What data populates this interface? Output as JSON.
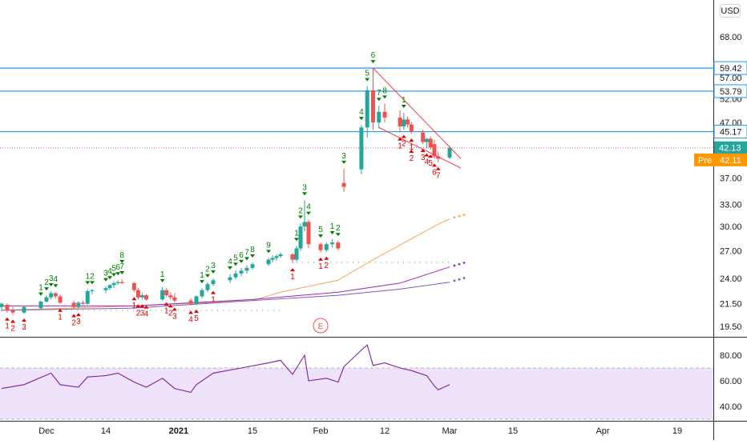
{
  "currency": "USD",
  "earnings_marker": "E",
  "chart_data": {
    "type": "candlestick",
    "x_tick_labels": [
      "Dec",
      "14",
      "2021",
      "15",
      "Feb",
      "12",
      "Mar",
      "15",
      "Apr",
      "19"
    ],
    "price_axis": {
      "scale": "log",
      "ticks": [
        68.0,
        57.0,
        52.0,
        47.0,
        42.0,
        37.0,
        33.0,
        30.0,
        27.0,
        24.0,
        21.5,
        19.5
      ],
      "tick_labels": [
        "68.00",
        "57.00",
        "52.00",
        "47.00",
        "42.00",
        "37.00",
        "33.00",
        "30.00",
        "27.00",
        "24.00",
        "21.50",
        "19.50"
      ]
    },
    "horizontal_levels": [
      59.42,
      53.79,
      45.17
    ],
    "level_labels": [
      "59.42",
      "53.79",
      "45.17"
    ],
    "last_price": 42.13,
    "last_price_label": "42.13",
    "premarket_tag": "Pre",
    "premarket_price": 42.11,
    "premarket_label": "42.11",
    "ohlc": [
      {
        "date": "Nov 23",
        "o": 21.2,
        "h": 21.6,
        "l": 20.8,
        "c": 21.5
      },
      {
        "date": "Nov 24",
        "o": 21.4,
        "h": 21.5,
        "l": 20.7,
        "c": 20.9
      },
      {
        "date": "Nov 25",
        "o": 20.9,
        "h": 21.2,
        "l": 20.5,
        "c": 20.7
      },
      {
        "date": "Nov 27",
        "o": 20.7,
        "h": 21.3,
        "l": 20.6,
        "c": 21.2
      },
      {
        "date": "Nov 30",
        "o": 21.1,
        "h": 21.8,
        "l": 21.0,
        "c": 21.7
      },
      {
        "date": "Dec 1",
        "o": 21.7,
        "h": 22.3,
        "l": 21.6,
        "c": 22.1
      },
      {
        "date": "Dec 2",
        "o": 22.1,
        "h": 22.7,
        "l": 21.9,
        "c": 22.5
      },
      {
        "date": "Dec 3",
        "o": 22.5,
        "h": 22.6,
        "l": 22.0,
        "c": 22.2
      },
      {
        "date": "Dec 4",
        "o": 22.2,
        "h": 22.4,
        "l": 21.5,
        "c": 21.6
      },
      {
        "date": "Dec 7",
        "o": 21.6,
        "h": 21.8,
        "l": 21.0,
        "c": 21.2
      },
      {
        "date": "Dec 8",
        "o": 21.2,
        "h": 21.7,
        "l": 21.1,
        "c": 21.6
      },
      {
        "date": "Dec 9",
        "o": 21.6,
        "h": 21.8,
        "l": 21.4,
        "c": 21.5
      },
      {
        "date": "Dec 10",
        "o": 21.5,
        "h": 22.9,
        "l": 21.4,
        "c": 22.7
      },
      {
        "date": "Dec 11",
        "o": 22.7,
        "h": 22.9,
        "l": 22.4,
        "c": 22.8
      },
      {
        "date": "Dec 14",
        "o": 22.8,
        "h": 23.2,
        "l": 22.5,
        "c": 23.0
      },
      {
        "date": "Dec 15",
        "o": 23.0,
        "h": 23.4,
        "l": 22.8,
        "c": 23.3
      },
      {
        "date": "Dec 16",
        "o": 23.3,
        "h": 23.7,
        "l": 23.0,
        "c": 23.5
      },
      {
        "date": "Dec 17",
        "o": 23.5,
        "h": 23.8,
        "l": 23.3,
        "c": 23.6
      },
      {
        "date": "Dec 18",
        "o": 23.6,
        "h": 23.9,
        "l": 23.4,
        "c": 23.5
      },
      {
        "date": "Dec 21",
        "o": 23.5,
        "h": 23.6,
        "l": 22.6,
        "c": 22.8
      },
      {
        "date": "Dec 22",
        "o": 22.8,
        "h": 23.0,
        "l": 21.9,
        "c": 22.1
      },
      {
        "date": "Dec 23",
        "o": 22.1,
        "h": 22.5,
        "l": 21.9,
        "c": 22.3
      },
      {
        "date": "Dec 24",
        "o": 22.3,
        "h": 22.4,
        "l": 21.8,
        "c": 21.9
      },
      {
        "date": "Dec 28",
        "o": 21.9,
        "h": 23.1,
        "l": 21.8,
        "c": 22.8
      },
      {
        "date": "Dec 29",
        "o": 22.8,
        "h": 23.0,
        "l": 22.1,
        "c": 22.3
      },
      {
        "date": "Dec 30",
        "o": 22.3,
        "h": 22.6,
        "l": 21.9,
        "c": 22.1
      },
      {
        "date": "Dec 31",
        "o": 22.1,
        "h": 22.5,
        "l": 21.6,
        "c": 21.8
      },
      {
        "date": "Jan 4",
        "o": 21.8,
        "h": 22.0,
        "l": 21.3,
        "c": 21.5
      },
      {
        "date": "Jan 5",
        "o": 21.5,
        "h": 22.3,
        "l": 21.4,
        "c": 22.2
      },
      {
        "date": "Jan 6",
        "o": 22.2,
        "h": 23.0,
        "l": 22.0,
        "c": 22.8
      },
      {
        "date": "Jan 7",
        "o": 22.8,
        "h": 23.6,
        "l": 22.6,
        "c": 23.4
      },
      {
        "date": "Jan 8",
        "o": 23.4,
        "h": 24.0,
        "l": 23.2,
        "c": 23.8
      },
      {
        "date": "Jan 11",
        "o": 23.8,
        "h": 24.4,
        "l": 23.5,
        "c": 24.1
      },
      {
        "date": "Jan 12",
        "o": 24.1,
        "h": 24.8,
        "l": 23.9,
        "c": 24.5
      },
      {
        "date": "Jan 13",
        "o": 24.5,
        "h": 25.1,
        "l": 24.2,
        "c": 24.8
      },
      {
        "date": "Jan 14",
        "o": 24.8,
        "h": 25.4,
        "l": 24.5,
        "c": 25.1
      },
      {
        "date": "Jan 15",
        "o": 25.1,
        "h": 25.7,
        "l": 24.9,
        "c": 25.5
      },
      {
        "date": "Jan 19",
        "o": 25.5,
        "h": 26.2,
        "l": 25.3,
        "c": 26.0
      },
      {
        "date": "Jan 20",
        "o": 26.0,
        "h": 26.5,
        "l": 25.7,
        "c": 26.2
      },
      {
        "date": "Jan 21",
        "o": 26.2,
        "h": 26.6,
        "l": 25.9,
        "c": 26.4
      },
      {
        "date": "Jan 22",
        "o": 26.4,
        "h": 26.8,
        "l": 26.2,
        "c": 26.6
      },
      {
        "date": "Jan 25",
        "o": 26.6,
        "h": 26.8,
        "l": 25.6,
        "c": 26.0
      },
      {
        "date": "Jan 26",
        "o": 26.0,
        "h": 27.6,
        "l": 25.8,
        "c": 27.3
      },
      {
        "date": "Jan 27",
        "o": 27.3,
        "h": 30.4,
        "l": 27.0,
        "c": 30.0
      },
      {
        "date": "Jan 28",
        "o": 30.0,
        "h": 33.6,
        "l": 29.4,
        "c": 30.6
      },
      {
        "date": "Jan 29",
        "o": 30.6,
        "h": 30.9,
        "l": 27.3,
        "c": 27.8
      },
      {
        "date": "Feb 1",
        "o": 27.8,
        "h": 28.0,
        "l": 26.8,
        "c": 27.1
      },
      {
        "date": "Feb 2",
        "o": 27.1,
        "h": 28.0,
        "l": 26.9,
        "c": 27.8
      },
      {
        "date": "Feb 3",
        "o": 27.8,
        "h": 28.4,
        "l": 27.4,
        "c": 28.0
      },
      {
        "date": "Feb 4",
        "o": 28.0,
        "h": 28.2,
        "l": 27.1,
        "c": 27.3
      },
      {
        "date": "Feb 5",
        "o": 36.2,
        "h": 38.5,
        "l": 34.8,
        "c": 35.6
      },
      {
        "date": "Feb 8",
        "o": 38.4,
        "h": 46.5,
        "l": 37.6,
        "c": 46.0
      },
      {
        "date": "Feb 9",
        "o": 46.0,
        "h": 55.0,
        "l": 44.0,
        "c": 54.0
      },
      {
        "date": "Feb 10",
        "o": 54.0,
        "h": 59.42,
        "l": 45.5,
        "c": 47.0
      },
      {
        "date": "Feb 11",
        "o": 47.0,
        "h": 50.5,
        "l": 45.8,
        "c": 49.2
      },
      {
        "date": "Feb 12",
        "o": 49.2,
        "h": 51.0,
        "l": 47.0,
        "c": 48.0
      },
      {
        "date": "Feb 16",
        "o": 48.0,
        "h": 49.5,
        "l": 45.0,
        "c": 46.2
      },
      {
        "date": "Feb 17",
        "o": 46.2,
        "h": 49.0,
        "l": 45.5,
        "c": 47.6
      },
      {
        "date": "Feb 18",
        "o": 47.6,
        "h": 48.2,
        "l": 46.0,
        "c": 46.6
      },
      {
        "date": "Feb 19",
        "o": 46.6,
        "h": 47.0,
        "l": 44.8,
        "c": 45.2
      },
      {
        "date": "Feb 22",
        "o": 45.0,
        "h": 45.6,
        "l": 42.8,
        "c": 43.2
      },
      {
        "date": "Feb 23",
        "o": 43.2,
        "h": 44.0,
        "l": 42.0,
        "c": 43.8
      },
      {
        "date": "Feb 24",
        "o": 43.8,
        "h": 44.2,
        "l": 41.8,
        "c": 42.2
      },
      {
        "date": "Feb 25",
        "o": 42.8,
        "h": 43.6,
        "l": 40.2,
        "c": 40.6
      },
      {
        "date": "Feb 26",
        "o": 40.6,
        "h": 41.4,
        "l": 39.6,
        "c": 40.2
      },
      {
        "date": "Mar 1",
        "o": 40.4,
        "h": 42.5,
        "l": 40.1,
        "c": 42.13
      }
    ],
    "overlays": [
      {
        "kind": "moving-average",
        "color": "#f7a35c",
        "values": [
          {
            "date": "Nov 23",
            "v": 20.9
          },
          {
            "date": "Dec 21",
            "v": 21.3
          },
          {
            "date": "Jan 15",
            "v": 21.8
          },
          {
            "date": "Jan 22",
            "v": 22.6
          },
          {
            "date": "Feb 4",
            "v": 23.8
          },
          {
            "date": "Feb 10",
            "v": 26.0
          },
          {
            "date": "Feb 18",
            "v": 28.2
          },
          {
            "date": "Feb 26",
            "v": 30.3
          },
          {
            "date": "Mar 1",
            "v": 31.0
          }
        ]
      },
      {
        "kind": "moving-average",
        "color": "#9c27b0",
        "values": [
          {
            "date": "Nov 23",
            "v": 21.3
          },
          {
            "date": "Dec 21",
            "v": 21.3
          },
          {
            "date": "Jan 15",
            "v": 21.9
          },
          {
            "date": "Feb 4",
            "v": 22.6
          },
          {
            "date": "Feb 16",
            "v": 23.5
          },
          {
            "date": "Mar 1",
            "v": 25.2
          }
        ]
      },
      {
        "kind": "moving-average",
        "color": "#7e57c2",
        "values": [
          {
            "date": "Nov 23",
            "v": 20.9
          },
          {
            "date": "Dec 21",
            "v": 21.1
          },
          {
            "date": "Jan 15",
            "v": 21.8
          },
          {
            "date": "Feb 4",
            "v": 22.3
          },
          {
            "date": "Feb 16",
            "v": 22.9
          },
          {
            "date": "Mar 1",
            "v": 23.6
          }
        ]
      }
    ],
    "dotted_levels": [
      {
        "value": 20.9,
        "color": "#66bb6a",
        "from": "Dec 4",
        "to": "Jan 22"
      },
      {
        "value": 25.7,
        "color": "#66bb6a",
        "from": "Jan 26",
        "to": "Mar 1"
      }
    ],
    "trendlines": [
      {
        "from": {
          "date": "Feb 10",
          "v": 59.42
        },
        "to": {
          "date": "Mar 1",
          "v": 40.2
        },
        "color": "#f23645"
      },
      {
        "from": {
          "date": "Feb 11",
          "v": 46.0
        },
        "to": {
          "date": "Mar 1",
          "v": 38.6
        },
        "color": "#f23645"
      }
    ],
    "td_sequential": {
      "buy_setup": [
        {
          "date": "Nov 24",
          "n": "1"
        },
        {
          "date": "Nov 25",
          "n": "2"
        },
        {
          "date": "Nov 27",
          "n": "3"
        },
        {
          "date": "Dec 4",
          "n": "1"
        },
        {
          "date": "Dec 7",
          "n": "2"
        },
        {
          "date": "Dec 8",
          "n": "3"
        },
        {
          "date": "Dec 21",
          "n": "1"
        },
        {
          "date": "Dec 22",
          "n": "2"
        },
        {
          "date": "Dec 23",
          "n": "3"
        },
        {
          "date": "Dec 24",
          "n": "4"
        },
        {
          "date": "Dec 29",
          "n": "1"
        },
        {
          "date": "Dec 30",
          "n": "2"
        },
        {
          "date": "Dec 31",
          "n": "3"
        },
        {
          "date": "Jan 4",
          "n": "4"
        },
        {
          "date": "Jan 5",
          "n": "5"
        },
        {
          "date": "Jan 8",
          "n": "1"
        },
        {
          "date": "Jan 25",
          "n": "1"
        },
        {
          "date": "Feb 1",
          "n": "1"
        },
        {
          "date": "Feb 2",
          "n": "2"
        },
        {
          "date": "Feb 16",
          "n": "1"
        },
        {
          "date": "Feb 17",
          "n": "2"
        },
        {
          "date": "Feb 19",
          "n": "1"
        },
        {
          "date": "Feb 19",
          "n": "2"
        },
        {
          "date": "Feb 22",
          "n": "3"
        },
        {
          "date": "Feb 23",
          "n": "4"
        },
        {
          "date": "Feb 24",
          "n": "5"
        },
        {
          "date": "Feb 25",
          "n": "6"
        },
        {
          "date": "Feb 26",
          "n": "7"
        }
      ],
      "sell_setup": [
        {
          "date": "Nov 30",
          "n": "1"
        },
        {
          "date": "Dec 1",
          "n": "2"
        },
        {
          "date": "Dec 2",
          "n": "3"
        },
        {
          "date": "Dec 3",
          "n": "4"
        },
        {
          "date": "Dec 10",
          "n": "1"
        },
        {
          "date": "Dec 11",
          "n": "2"
        },
        {
          "date": "Dec 14",
          "n": "3"
        },
        {
          "date": "Dec 15",
          "n": "4"
        },
        {
          "date": "Dec 16",
          "n": "5"
        },
        {
          "date": "Dec 17",
          "n": "6"
        },
        {
          "date": "Dec 18",
          "n": "7"
        },
        {
          "date": "Dec 18",
          "n": "8"
        },
        {
          "date": "Dec 28",
          "n": "1"
        },
        {
          "date": "Jan 6",
          "n": "1"
        },
        {
          "date": "Jan 7",
          "n": "2"
        },
        {
          "date": "Jan 8",
          "n": "3"
        },
        {
          "date": "Jan 11",
          "n": "4"
        },
        {
          "date": "Jan 12",
          "n": "5"
        },
        {
          "date": "Jan 13",
          "n": "6"
        },
        {
          "date": "Jan 14",
          "n": "7"
        },
        {
          "date": "Jan 15",
          "n": "8"
        },
        {
          "date": "Jan 19",
          "n": "9"
        },
        {
          "date": "Jan 26",
          "n": "1"
        },
        {
          "date": "Jan 27",
          "n": "2"
        },
        {
          "date": "Jan 28",
          "n": "3"
        },
        {
          "date": "Jan 29",
          "n": "4"
        },
        {
          "date": "Feb 1",
          "n": "5"
        },
        {
          "date": "Feb 3",
          "n": "1"
        },
        {
          "date": "Feb 4",
          "n": "2"
        },
        {
          "date": "Feb 5",
          "n": "3"
        },
        {
          "date": "Feb 8",
          "n": "4"
        },
        {
          "date": "Feb 9",
          "n": "5"
        },
        {
          "date": "Feb 10",
          "n": "6"
        },
        {
          "date": "Feb 11",
          "n": "7"
        },
        {
          "date": "Feb 12",
          "n": "8"
        },
        {
          "date": "Feb 17",
          "n": "1"
        }
      ]
    },
    "rsi": {
      "ticks": [
        80.0,
        60.0,
        40.0
      ],
      "tick_labels": [
        "80.00",
        "60.00",
        "40.00"
      ],
      "band": [
        30,
        70
      ],
      "color": "#7b1fa2",
      "values": [
        {
          "date": "Nov 23",
          "v": 54
        },
        {
          "date": "Nov 27",
          "v": 57
        },
        {
          "date": "Dec 2",
          "v": 66
        },
        {
          "date": "Dec 4",
          "v": 57
        },
        {
          "date": "Dec 8",
          "v": 55
        },
        {
          "date": "Dec 10",
          "v": 63
        },
        {
          "date": "Dec 14",
          "v": 64
        },
        {
          "date": "Dec 17",
          "v": 66
        },
        {
          "date": "Dec 21",
          "v": 59
        },
        {
          "date": "Dec 24",
          "v": 55
        },
        {
          "date": "Dec 28",
          "v": 62
        },
        {
          "date": "Dec 31",
          "v": 54
        },
        {
          "date": "Jan 4",
          "v": 51
        },
        {
          "date": "Jan 5",
          "v": 57
        },
        {
          "date": "Jan 8",
          "v": 66
        },
        {
          "date": "Jan 13",
          "v": 70
        },
        {
          "date": "Jan 19",
          "v": 74
        },
        {
          "date": "Jan 22",
          "v": 76
        },
        {
          "date": "Jan 25",
          "v": 65
        },
        {
          "date": "Jan 28",
          "v": 80
        },
        {
          "date": "Jan 29",
          "v": 60
        },
        {
          "date": "Feb 2",
          "v": 62
        },
        {
          "date": "Feb 4",
          "v": 59
        },
        {
          "date": "Feb 5",
          "v": 71
        },
        {
          "date": "Feb 8",
          "v": 84
        },
        {
          "date": "Feb 9",
          "v": 88
        },
        {
          "date": "Feb 10",
          "v": 72
        },
        {
          "date": "Feb 12",
          "v": 74
        },
        {
          "date": "Feb 16",
          "v": 70
        },
        {
          "date": "Feb 19",
          "v": 68
        },
        {
          "date": "Feb 23",
          "v": 64
        },
        {
          "date": "Feb 25",
          "v": 56
        },
        {
          "date": "Feb 26",
          "v": 53
        },
        {
          "date": "Mar 1",
          "v": 57
        }
      ]
    },
    "colors": {
      "up": "#26a69a",
      "down": "#ef5350",
      "level": "#2196f3",
      "buy_setup": "#e00000",
      "sell_setup": "#008000",
      "last": "#26a69a",
      "pre": "#ff9800",
      "rsi_band": "#efe2fb",
      "grid_sep": "#2a2e39"
    }
  }
}
